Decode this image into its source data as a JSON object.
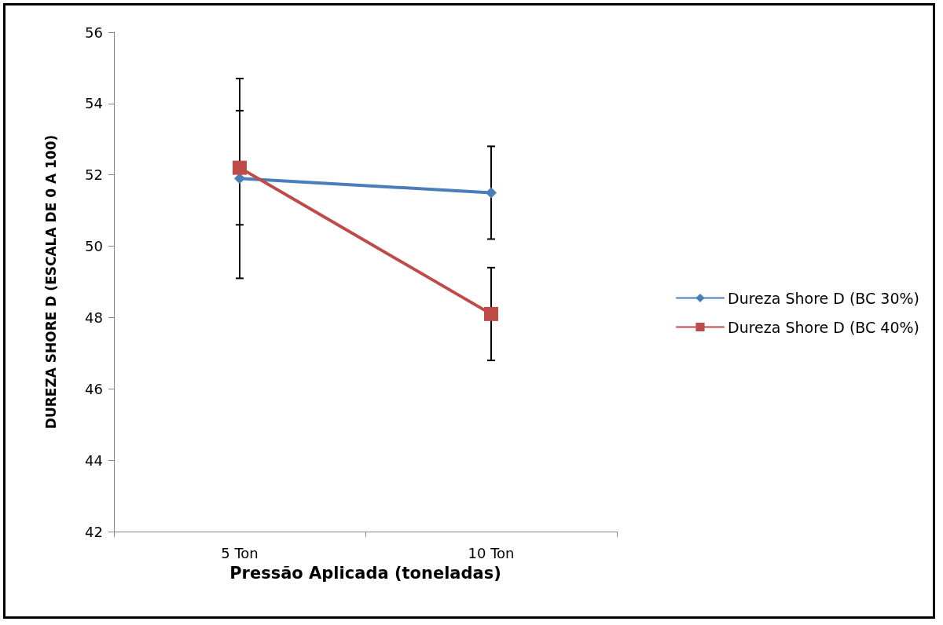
{
  "chart_data": {
    "type": "line",
    "xlabel": "Pressão Aplicada (toneladas)",
    "ylabel": "DUREZA SHORE D (ESCALA DE 0 A 100)",
    "categories": [
      "5 Ton",
      "10 Ton"
    ],
    "series": [
      {
        "name": "Dureza Shore D (BC 30%)",
        "color": "#4a7ebb",
        "marker": "diamond",
        "values": [
          51.9,
          51.5
        ],
        "errors": [
          2.8,
          1.3
        ]
      },
      {
        "name": "Dureza Shore D (BC 40%)",
        "color": "#be4b48",
        "marker": "square",
        "values": [
          52.2,
          48.1
        ],
        "errors": [
          1.6,
          1.3
        ]
      }
    ],
    "ylim": [
      42,
      56
    ],
    "yticks": [
      42,
      44,
      46,
      48,
      50,
      52,
      54,
      56
    ],
    "grid": false,
    "legend": "right",
    "line_style": "solid"
  }
}
